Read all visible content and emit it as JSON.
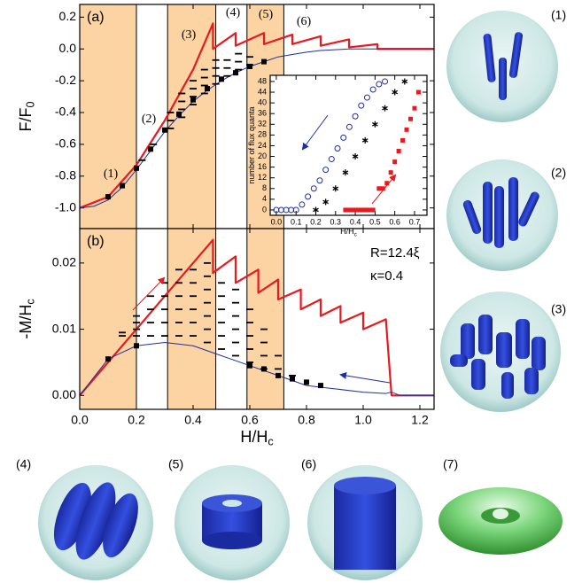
{
  "chart_data": [
    {
      "type": "line",
      "panel_label": "(a)",
      "ylabel": {
        "text": "F/F",
        "sub": "0"
      },
      "xlim": [
        0,
        1.25
      ],
      "ylim": [
        -1.13,
        0.28
      ],
      "yticks": [
        {
          "value": -1.0,
          "label": "-1.0"
        },
        -0.8,
        -0.6,
        -0.4,
        -0.2,
        {
          "value": 0.0,
          "label": "0.0"
        },
        0.2
      ],
      "shaded_regions": [
        [
          0,
          0.2
        ],
        [
          0.31,
          0.48
        ],
        [
          0.59,
          0.72
        ]
      ],
      "region_labels": [
        "(1)",
        "(2)",
        "(3)",
        "(4)",
        "(5)",
        "(6)"
      ],
      "series": [
        {
          "color": "#e8191f",
          "marker": "line",
          "width": 2.2,
          "x": [
            0,
            0.1,
            0.2,
            0.3,
            0.4,
            0.47,
            0.47,
            0.55,
            0.55,
            0.65,
            0.65,
            0.75,
            0.75,
            0.85,
            0.85,
            0.95,
            0.95,
            1.05,
            1.05,
            1.1,
            1.25
          ],
          "values": [
            -1.0,
            -0.93,
            -0.73,
            -0.45,
            -0.13,
            0.16,
            0.0,
            0.1,
            0.02,
            0.1,
            0.03,
            0.09,
            0.03,
            0.08,
            0.02,
            0.06,
            0.01,
            0.03,
            0.0,
            0.0,
            0.0
          ]
        },
        {
          "color": "#1f2fa0",
          "marker": "line",
          "width": 1,
          "x": [
            0,
            0.05,
            0.1,
            0.15,
            0.2,
            0.25,
            0.3,
            0.35,
            0.4,
            0.45,
            0.5,
            0.55,
            0.6,
            0.65,
            0.7,
            0.75,
            0.8,
            0.85,
            0.9,
            0.95,
            1.0,
            1.1,
            1.25
          ],
          "values": [
            -1.0,
            -0.99,
            -0.95,
            -0.87,
            -0.76,
            -0.64,
            -0.52,
            -0.42,
            -0.33,
            -0.26,
            -0.2,
            -0.15,
            -0.11,
            -0.08,
            -0.05,
            -0.035,
            -0.02,
            -0.01,
            -0.005,
            0,
            0,
            0,
            0
          ]
        },
        {
          "color": "#000000",
          "marker": "dash",
          "x": [
            0.22,
            0.26,
            0.32,
            0.32,
            0.32,
            0.36,
            0.36,
            0.36,
            0.36,
            0.4,
            0.4,
            0.4,
            0.4,
            0.44,
            0.44,
            0.44,
            0.44,
            0.48,
            0.48,
            0.48,
            0.48,
            0.52,
            0.52,
            0.52,
            0.56,
            0.56,
            0.56,
            0.6,
            0.6
          ],
          "values": [
            -0.7,
            -0.6,
            -0.5,
            -0.45,
            -0.4,
            -0.43,
            -0.38,
            -0.33,
            -0.28,
            -0.35,
            -0.3,
            -0.25,
            -0.2,
            -0.28,
            -0.23,
            -0.18,
            -0.13,
            -0.22,
            -0.17,
            -0.12,
            -0.07,
            -0.17,
            -0.12,
            -0.07,
            -0.13,
            -0.08,
            -0.03,
            -0.1,
            -0.05
          ]
        },
        {
          "color": "#000000",
          "marker": "square",
          "x": [
            0.1,
            0.15,
            0.2,
            0.25,
            0.3,
            0.35,
            0.4,
            0.45,
            0.5,
            0.55,
            0.6,
            0.65
          ],
          "values": [
            -0.93,
            -0.86,
            -0.75,
            -0.63,
            -0.51,
            -0.41,
            -0.32,
            -0.25,
            -0.19,
            -0.15,
            -0.11,
            -0.08
          ]
        }
      ]
    },
    {
      "type": "line",
      "panel_label": "(b)",
      "ylabel": {
        "text": "-M/H",
        "sub": "c"
      },
      "xlabel": {
        "text": "H/H",
        "sub": "c"
      },
      "xlim": [
        0,
        1.25
      ],
      "ylim": [
        -0.0021,
        0.0252
      ],
      "xticks": [
        {
          "value": 0.0,
          "label": "0.0"
        },
        0.2,
        0.4,
        0.6,
        0.8,
        {
          "value": 1.0,
          "label": "1.0"
        },
        1.2
      ],
      "yticks": [
        {
          "value": 0.0,
          "label": "0.00"
        },
        0.01,
        0.02
      ],
      "shaded_regions": [
        [
          0,
          0.2
        ],
        [
          0.31,
          0.48
        ],
        [
          0.59,
          0.72
        ]
      ],
      "annotations": [
        "R=12.4ξ",
        "κ=0.4"
      ],
      "series": [
        {
          "color": "#e8191f",
          "marker": "line",
          "width": 2.2,
          "x": [
            0,
            0.47,
            0.47,
            0.55,
            0.55,
            0.63,
            0.63,
            0.7,
            0.7,
            0.78,
            0.78,
            0.85,
            0.85,
            0.92,
            0.92,
            1.0,
            1.0,
            1.08,
            1.1,
            1.25
          ],
          "values": [
            0,
            0.0235,
            0.0185,
            0.021,
            0.017,
            0.019,
            0.0155,
            0.0175,
            0.0145,
            0.016,
            0.013,
            0.0145,
            0.012,
            0.0135,
            0.011,
            0.0125,
            0.01,
            0.0115,
            0,
            0
          ]
        },
        {
          "color": "#1f2fa0",
          "marker": "line",
          "width": 1,
          "x": [
            0,
            0.1,
            0.2,
            0.3,
            0.4,
            0.5,
            0.6,
            0.7,
            0.8,
            0.9,
            1.0,
            1.08,
            1.1,
            1.13,
            1.25
          ],
          "values": [
            0,
            0.0055,
            0.0075,
            0.008,
            0.0075,
            0.006,
            0.0045,
            0.003,
            0.0015,
            0.001,
            0.0005,
            0.0003,
            0.0005,
            0,
            0
          ]
        },
        {
          "color": "#000000",
          "marker": "dash",
          "x": [
            0.15,
            0.15,
            0.2,
            0.2,
            0.2,
            0.2,
            0.25,
            0.25,
            0.25,
            0.25,
            0.3,
            0.3,
            0.3,
            0.3,
            0.3,
            0.35,
            0.35,
            0.35,
            0.35,
            0.35,
            0.35,
            0.4,
            0.4,
            0.4,
            0.4,
            0.4,
            0.4,
            0.45,
            0.45,
            0.45,
            0.45,
            0.45,
            0.45,
            0.45,
            0.5,
            0.5,
            0.5,
            0.5,
            0.5,
            0.5,
            0.55,
            0.55,
            0.55,
            0.55,
            0.55,
            0.55,
            0.6,
            0.6,
            0.6,
            0.6,
            0.6,
            0.65,
            0.65,
            0.65,
            0.65,
            0.7,
            0.7,
            0.75
          ],
          "values": [
            0.009,
            0.0095,
            0.009,
            0.01,
            0.011,
            0.012,
            0.009,
            0.011,
            0.013,
            0.015,
            0.009,
            0.011,
            0.013,
            0.015,
            0.017,
            0.009,
            0.011,
            0.013,
            0.015,
            0.017,
            0.019,
            0.009,
            0.011,
            0.013,
            0.015,
            0.017,
            0.019,
            0.008,
            0.01,
            0.012,
            0.014,
            0.016,
            0.018,
            0.02,
            0.007,
            0.009,
            0.011,
            0.013,
            0.015,
            0.017,
            0.006,
            0.008,
            0.01,
            0.012,
            0.014,
            0.016,
            0.005,
            0.007,
            0.009,
            0.011,
            0.013,
            0.004,
            0.006,
            0.008,
            0.01,
            0.004,
            0.006,
            0.003
          ]
        },
        {
          "color": "#000000",
          "marker": "square",
          "x": [
            0.1,
            0.2,
            0.6,
            0.65,
            0.7,
            0.75,
            0.8,
            0.85
          ],
          "values": [
            0.0055,
            0.0075,
            0.0045,
            0.004,
            0.003,
            0.0025,
            0.002,
            0.0015
          ]
        }
      ]
    },
    {
      "type": "line",
      "ylabel": {
        "text": "number of flux quanta"
      },
      "xlabel": {
        "text": "H/H",
        "sub": "c"
      },
      "xlim": [
        -0.031,
        0.763
      ],
      "ylim": [
        -2,
        50.3
      ],
      "xticks": [
        {
          "value": 0.0,
          "label": "0.0"
        },
        0.1,
        0.2,
        0.3,
        0.4,
        0.5,
        0.6,
        0.7
      ],
      "yticks": [
        0,
        4,
        8,
        12,
        16,
        20,
        24,
        28,
        32,
        36,
        40,
        44,
        48
      ],
      "series": [
        {
          "color": "#1f2fa0",
          "marker": "circle",
          "x": [
            0,
            0.025,
            0.05,
            0.075,
            0.1,
            0.13,
            0.16,
            0.19,
            0.22,
            0.25,
            0.28,
            0.31,
            0.34,
            0.37,
            0.4,
            0.43,
            0.46,
            0.49,
            0.52,
            0.55
          ],
          "values": [
            0,
            0,
            0,
            0,
            0,
            2,
            5,
            8,
            11,
            15,
            19,
            23,
            27,
            31,
            35,
            39,
            42,
            45,
            47,
            48
          ]
        },
        {
          "color": "#000000",
          "marker": "star",
          "x": [
            0.2,
            0.25,
            0.3,
            0.35,
            0.4,
            0.45,
            0.5,
            0.55,
            0.6,
            0.65
          ],
          "values": [
            0,
            3,
            8,
            14,
            20,
            26,
            32,
            38,
            44,
            48
          ]
        },
        {
          "color": "#e8191f",
          "marker": "filled-square",
          "x": [
            0.35,
            0.37,
            0.39,
            0.41,
            0.43,
            0.45,
            0.47,
            0.49,
            0.52,
            0.54,
            0.56,
            0.58,
            0.6,
            0.62,
            0.64,
            0.66,
            0.68,
            0.7,
            0.72
          ],
          "values": [
            0,
            0,
            0,
            0,
            0,
            0,
            0,
            0,
            8,
            8,
            10,
            14,
            18,
            22,
            26,
            30,
            34,
            38,
            44
          ]
        }
      ]
    }
  ],
  "images": {
    "labels": [
      "(1)",
      "(2)",
      "(3)",
      "(4)",
      "(5)",
      "(6)",
      "(7)"
    ]
  }
}
